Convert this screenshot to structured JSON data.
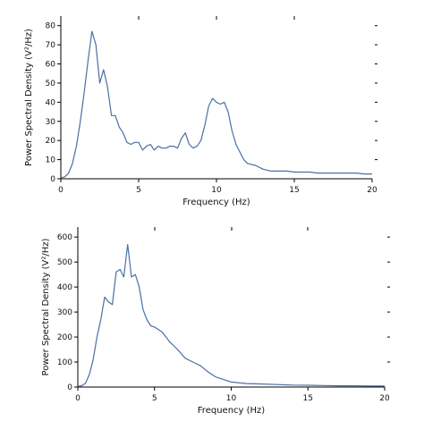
{
  "chart_data": [
    {
      "type": "line",
      "xlabel": "Frequency (Hz)",
      "ylabel": "Power Spectral Density (V²/Hz)",
      "xlim": [
        0,
        20
      ],
      "ylim": [
        0,
        85
      ],
      "xticks": [
        0,
        5,
        10,
        15,
        20
      ],
      "yticks": [
        0,
        10,
        20,
        30,
        40,
        50,
        60,
        70,
        80
      ],
      "grid": false,
      "color": "#4a6fa5",
      "x": [
        0,
        0.25,
        0.5,
        0.75,
        1,
        1.25,
        1.5,
        1.75,
        2,
        2.25,
        2.5,
        2.75,
        3,
        3.25,
        3.5,
        3.75,
        4,
        4.25,
        4.5,
        4.75,
        5,
        5.25,
        5.5,
        5.75,
        6,
        6.25,
        6.5,
        6.75,
        7,
        7.25,
        7.5,
        7.75,
        8,
        8.25,
        8.5,
        8.75,
        9,
        9.25,
        9.5,
        9.75,
        10,
        10.25,
        10.5,
        10.75,
        11,
        11.25,
        11.5,
        11.75,
        12,
        12.5,
        13,
        13.5,
        14,
        14.5,
        15,
        15.5,
        16,
        16.5,
        17,
        17.5,
        18,
        18.5,
        19,
        19.5,
        20
      ],
      "y": [
        0.5,
        1,
        3,
        8,
        17,
        30,
        45,
        62,
        77,
        70,
        50,
        57,
        48,
        33,
        33,
        27,
        24,
        19,
        18,
        19,
        19,
        15,
        17,
        18,
        15,
        17,
        16,
        16,
        17,
        17,
        16,
        21,
        24,
        18,
        16,
        17,
        20,
        28,
        38,
        42,
        40,
        39,
        40,
        35,
        25,
        18,
        14,
        10,
        8,
        7,
        5,
        4,
        4,
        4,
        3.5,
        3.5,
        3.5,
        3,
        3,
        3,
        3,
        3,
        3,
        2.5,
        2.5
      ]
    },
    {
      "type": "line",
      "xlabel": "Frequency (Hz)",
      "ylabel": "Power Spectral Density (V²/Hz)",
      "xlim": [
        0,
        20
      ],
      "ylim": [
        0,
        640
      ],
      "xticks": [
        0,
        5,
        10,
        15,
        20
      ],
      "yticks": [
        0,
        100,
        200,
        300,
        400,
        500,
        600
      ],
      "grid": false,
      "color": "#4a6fa5",
      "x": [
        0,
        0.25,
        0.5,
        0.75,
        1,
        1.25,
        1.5,
        1.75,
        2,
        2.25,
        2.5,
        2.75,
        3,
        3.25,
        3.5,
        3.75,
        4,
        4.25,
        4.5,
        4.75,
        5,
        5.5,
        6,
        6.5,
        7,
        7.5,
        8,
        8.5,
        9,
        9.5,
        10,
        11,
        12,
        13,
        14,
        15,
        16,
        17,
        18,
        19,
        20
      ],
      "y": [
        3,
        5,
        15,
        50,
        110,
        200,
        270,
        360,
        340,
        330,
        460,
        470,
        440,
        570,
        440,
        450,
        400,
        310,
        270,
        245,
        240,
        220,
        180,
        150,
        115,
        100,
        85,
        60,
        40,
        30,
        20,
        14,
        12,
        10,
        8,
        7,
        6,
        5,
        5,
        4,
        4
      ]
    }
  ]
}
